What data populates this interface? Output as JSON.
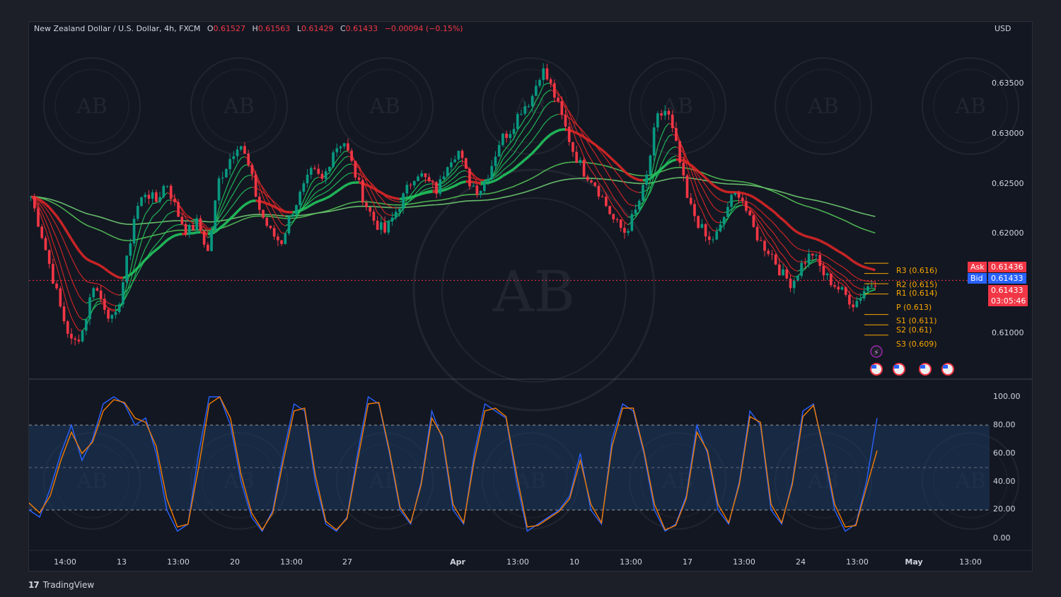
{
  "header": {
    "symbol": "New Zealand Dollar / U.S. Dollar, 4h, FXCM",
    "open_label": "O",
    "open": "0.61527",
    "high_label": "H",
    "high": "0.61563",
    "low_label": "L",
    "low": "0.61429",
    "close_label": "C",
    "close": "0.61433",
    "change": "−0.00094 (−0.15%)"
  },
  "currency": "USD",
  "price_axis": [
    "0.63500",
    "0.63000",
    "0.62500",
    "0.62000",
    "0.61000"
  ],
  "oscillator_axis": [
    "100.00",
    "80.00",
    "60.00",
    "40.00",
    "20.00",
    "0.00"
  ],
  "time_axis": [
    "14:00",
    "13",
    "13:00",
    "20",
    "13:00",
    "27",
    "Apr",
    "13:00",
    "10",
    "13:00",
    "17",
    "13:00",
    "24",
    "13:00",
    "May",
    "13:00"
  ],
  "pivots": [
    {
      "label": "R3 (0.616)",
      "value": 0.616
    },
    {
      "label": "R2 (0.615)",
      "value": 0.615
    },
    {
      "label": "R1 (0.614)",
      "value": 0.614
    },
    {
      "label": "P (0.613)",
      "value": 0.613
    },
    {
      "label": "S1 (0.611)",
      "value": 0.611
    },
    {
      "label": "S2 (0.61)",
      "value": 0.61
    },
    {
      "label": "S3 (0.609)",
      "value": 0.609
    }
  ],
  "quote": {
    "ask_label": "Ask",
    "ask": "0.61436",
    "bid_label": "Bid",
    "bid": "0.61433",
    "last": "0.61433",
    "countdown": "03:05:46"
  },
  "watermark": {
    "text": "ARABIAN BUSINESS ACADEMY",
    "monogram": "AB"
  },
  "brand": {
    "name": "TradingView",
    "logo_text": "17"
  },
  "colors": {
    "bull": "#089981",
    "bear": "#f23645",
    "ribbon_green": "#22c55e",
    "ribbon_red": "#dc2626",
    "stoch_k": "#2962ff",
    "stoch_d": "#f57c00",
    "pivot": "#f7a600"
  },
  "chart_data": {
    "type": "candlestick",
    "timeframe": "4h",
    "ylim": [
      0.6065,
      0.6375
    ],
    "oscillator_ylim": [
      0,
      100
    ],
    "oscillator_bands": [
      20,
      50,
      80
    ],
    "close_path": [
      0.6225,
      0.619,
      0.615,
      0.611,
      0.608,
      0.6095,
      0.614,
      0.612,
      0.61,
      0.615,
      0.621,
      0.623,
      0.622,
      0.624,
      0.621,
      0.619,
      0.62,
      0.617,
      0.624,
      0.626,
      0.628,
      0.625,
      0.621,
      0.619,
      0.618,
      0.621,
      0.623,
      0.625,
      0.624,
      0.627,
      0.628,
      0.625,
      0.622,
      0.62,
      0.619,
      0.621,
      0.623,
      0.625,
      0.624,
      0.623,
      0.626,
      0.627,
      0.624,
      0.623,
      0.625,
      0.628,
      0.629,
      0.631,
      0.632,
      0.635,
      0.633,
      0.63,
      0.627,
      0.625,
      0.624,
      0.622,
      0.62,
      0.619,
      0.621,
      0.624,
      0.63,
      0.631,
      0.627,
      0.622,
      0.62,
      0.618,
      0.619,
      0.622,
      0.623,
      0.62,
      0.618,
      0.617,
      0.615,
      0.614,
      0.616,
      0.617,
      0.615,
      0.614,
      0.613,
      0.612,
      0.6135,
      0.6143
    ],
    "stoch_k": [
      20,
      15,
      35,
      60,
      80,
      55,
      70,
      95,
      100,
      95,
      80,
      85,
      60,
      20,
      5,
      10,
      60,
      100,
      100,
      80,
      40,
      15,
      5,
      20,
      60,
      95,
      90,
      40,
      10,
      5,
      15,
      60,
      100,
      95,
      60,
      20,
      10,
      40,
      90,
      70,
      20,
      10,
      60,
      95,
      90,
      85,
      40,
      5,
      10,
      15,
      20,
      30,
      60,
      20,
      10,
      70,
      95,
      90,
      60,
      20,
      5,
      10,
      30,
      80,
      60,
      20,
      10,
      40,
      90,
      80,
      20,
      10,
      40,
      90,
      95,
      60,
      20,
      5,
      10,
      40,
      85
    ],
    "stoch_d": [
      25,
      18,
      30,
      55,
      75,
      60,
      68,
      90,
      98,
      96,
      85,
      82,
      65,
      28,
      8,
      10,
      50,
      95,
      100,
      85,
      45,
      18,
      6,
      18,
      55,
      90,
      92,
      45,
      12,
      6,
      14,
      55,
      95,
      96,
      62,
      22,
      11,
      38,
      85,
      72,
      24,
      11,
      55,
      90,
      92,
      86,
      45,
      8,
      9,
      14,
      19,
      28,
      55,
      24,
      11,
      65,
      92,
      92,
      62,
      24,
      6,
      9,
      28,
      75,
      62,
      24,
      11,
      38,
      86,
      82,
      24,
      11,
      38,
      86,
      94,
      62,
      24,
      8,
      9,
      36,
      62
    ]
  }
}
